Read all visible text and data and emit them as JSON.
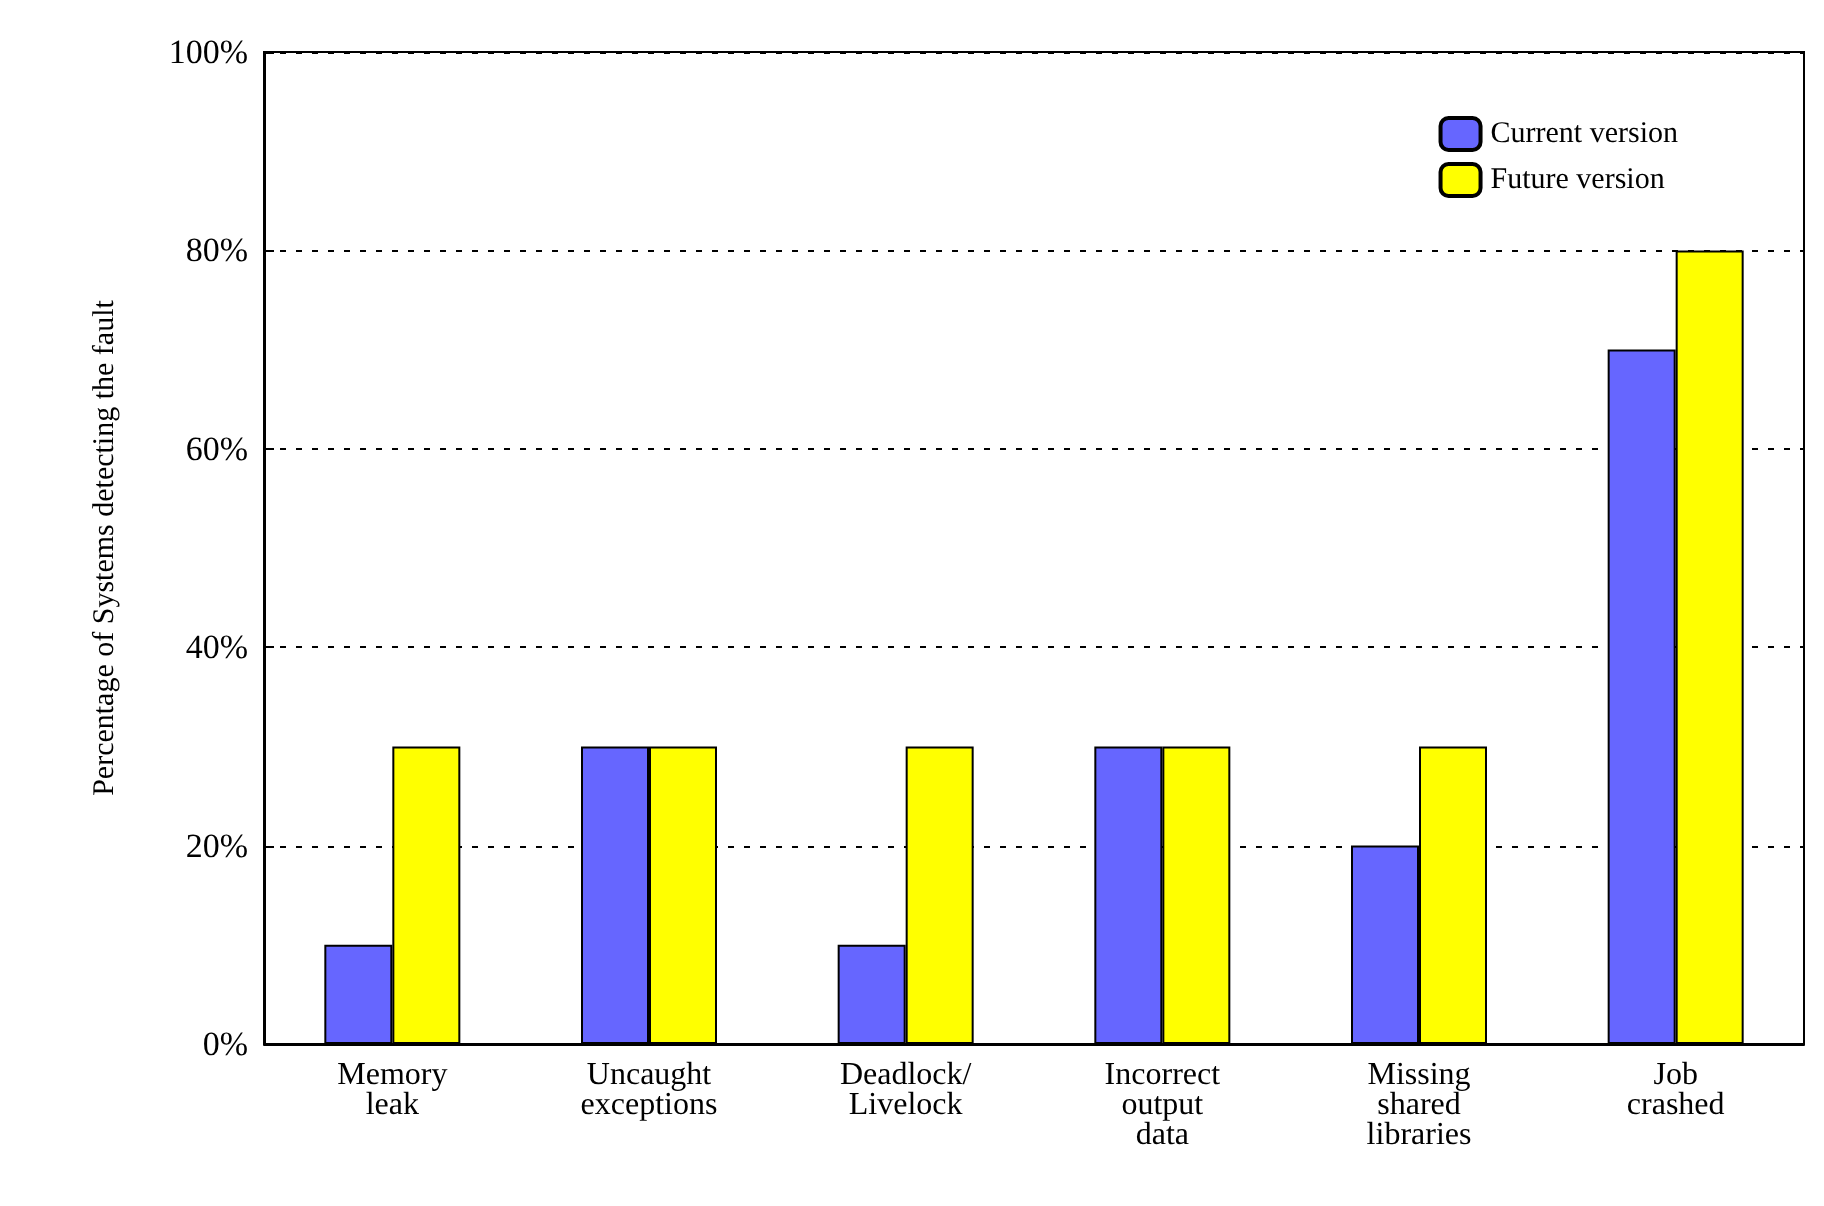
{
  "chart_data": {
    "type": "bar",
    "ylabel": "Percentage of Systems detecting the fault",
    "categories": [
      "Memory\nleak",
      "Uncaught\nexceptions",
      "Deadlock/\nLivelock",
      "Incorrect\noutput\ndata",
      "Missing\nshared\nlibraries",
      "Job\ncrashed"
    ],
    "series": [
      {
        "name": "Current version",
        "color": "#6666ff",
        "values": [
          10,
          30,
          10,
          30,
          20,
          70
        ]
      },
      {
        "name": "Future version",
        "color": "#ffff00",
        "values": [
          30,
          30,
          30,
          30,
          30,
          80
        ]
      }
    ],
    "ylim": [
      0,
      100
    ],
    "yticks": [
      {
        "value": 0,
        "label": "0%"
      },
      {
        "value": 20,
        "label": "20%"
      },
      {
        "value": 40,
        "label": "40%"
      },
      {
        "value": 60,
        "label": "60%"
      },
      {
        "value": 80,
        "label": "80%"
      },
      {
        "value": 100,
        "label": "100%"
      }
    ],
    "grid": "y",
    "legend": "top right"
  }
}
